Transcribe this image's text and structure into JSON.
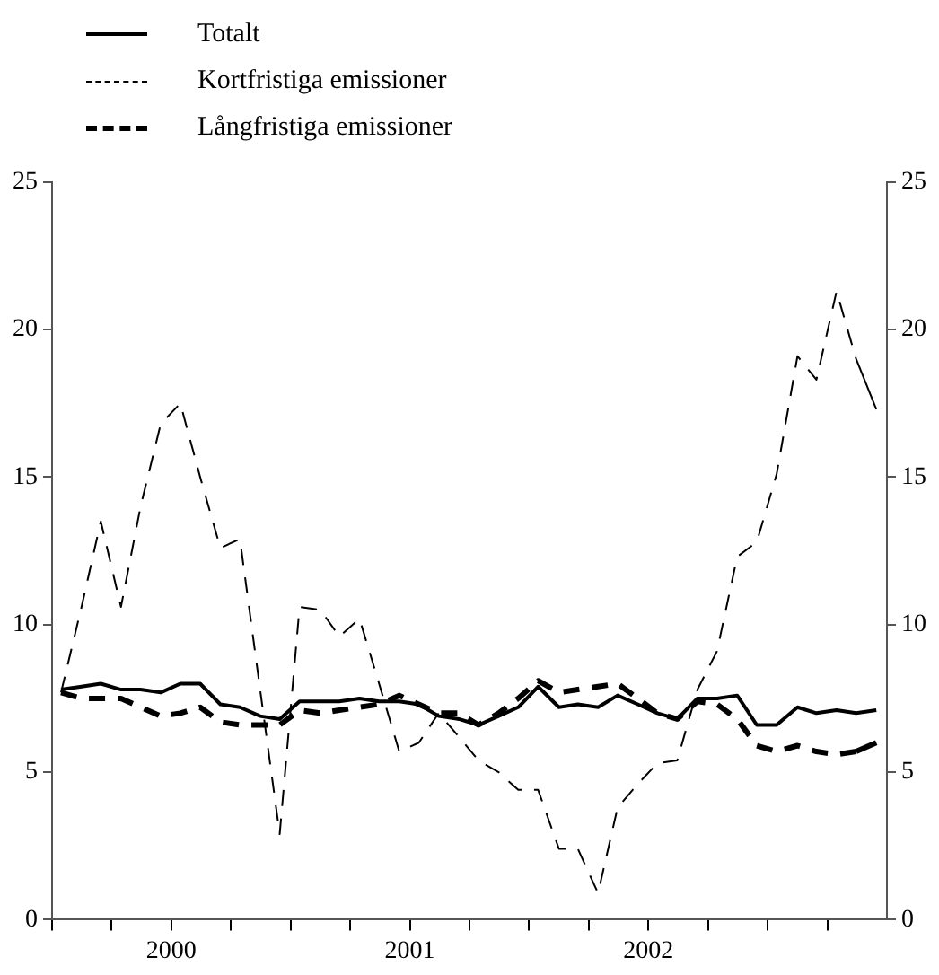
{
  "chart_data": {
    "type": "line",
    "legend": "top left",
    "marker": "none",
    "grid": false,
    "x": [
      "2000-01-15",
      "2000-02-15",
      "2000-03-15",
      "2000-04-15",
      "2000-05-15",
      "2000-06-15",
      "2000-07-15",
      "2000-08-15",
      "2000-09-15",
      "2000-10-15",
      "2000-11-15",
      "2000-12-15",
      "2001-01-15",
      "2001-02-15",
      "2001-03-15",
      "2001-04-15",
      "2001-05-15",
      "2001-06-15",
      "2001-07-15",
      "2001-08-15",
      "2001-09-15",
      "2001-10-15",
      "2001-11-15",
      "2001-12-15",
      "2002-01-15",
      "2002-02-15",
      "2002-03-15",
      "2002-04-15",
      "2002-05-15",
      "2002-06-15",
      "2002-07-15",
      "2002-08-15",
      "2002-09-15",
      "2002-10-15",
      "2002-11-15",
      "2002-12-15",
      "2003-01-15",
      "2003-02-15",
      "2003-03-15",
      "2003-04-15",
      "2003-05-15",
      "2003-06-15"
    ],
    "xlim": [
      "2000-01-01",
      "2003-07-01"
    ],
    "xticks": [
      {
        "value": "2000-01-01",
        "label": null
      },
      {
        "value": "2000-04-01",
        "label": null
      },
      {
        "value": "2000-07-01",
        "label": "2000"
      },
      {
        "value": "2000-10-01",
        "label": null
      },
      {
        "value": "2001-01-01",
        "label": null
      },
      {
        "value": "2001-04-01",
        "label": null
      },
      {
        "value": "2001-07-01",
        "label": "2001"
      },
      {
        "value": "2001-10-01",
        "label": null
      },
      {
        "value": "2002-01-01",
        "label": null
      },
      {
        "value": "2002-04-01",
        "label": null
      },
      {
        "value": "2002-07-01",
        "label": "2002"
      },
      {
        "value": "2002-10-01",
        "label": null
      },
      {
        "value": "2003-01-01",
        "label": null
      },
      {
        "value": "2003-04-01",
        "label": null
      }
    ],
    "ylim": [
      0,
      25
    ],
    "yticks": [
      0,
      5,
      10,
      15,
      20,
      25
    ],
    "y2lim": [
      0,
      25
    ],
    "y2ticks": [
      0,
      5,
      10,
      15,
      20,
      25
    ],
    "series": [
      {
        "name": "Totalt",
        "color": "#000000",
        "line_style": "solid",
        "values": [
          7.8,
          7.9,
          8.0,
          7.8,
          7.8,
          7.7,
          8.0,
          8.0,
          7.3,
          7.2,
          6.9,
          6.8,
          7.4,
          7.4,
          7.4,
          7.5,
          7.4,
          7.4,
          7.3,
          6.9,
          6.8,
          6.6,
          6.9,
          7.2,
          7.9,
          7.2,
          7.3,
          7.2,
          7.6,
          7.3,
          7.0,
          6.8,
          7.5,
          7.5,
          7.6,
          6.6,
          6.6,
          7.2,
          7.0,
          7.1,
          7.0,
          7.1
        ]
      },
      {
        "name": "Kortfristiga emissioner",
        "color": "#000000",
        "line_style": "dashed",
        "values": [
          7.7,
          10.6,
          13.5,
          10.6,
          14.0,
          16.8,
          17.5,
          15.0,
          12.6,
          12.9,
          7.8,
          2.9,
          10.6,
          10.5,
          9.6,
          10.2,
          8.0,
          5.7,
          6.0,
          7.0,
          6.2,
          5.4,
          5.0,
          4.4,
          4.4,
          2.4,
          2.4,
          0.9,
          3.8,
          4.6,
          5.3,
          5.4,
          7.8,
          9.1,
          12.3,
          12.8,
          15.1,
          19.1,
          18.3,
          21.3,
          19.0,
          17.3
        ]
      },
      {
        "name": "Långfristiga emissioner",
        "color": "#000000",
        "line_style": "dashed",
        "values": [
          7.7,
          7.5,
          7.5,
          7.5,
          7.2,
          6.9,
          7.0,
          7.2,
          6.7,
          6.6,
          6.6,
          6.6,
          7.1,
          7.0,
          7.1,
          7.2,
          7.3,
          7.6,
          7.3,
          7.0,
          7.0,
          6.6,
          7.0,
          7.5,
          8.1,
          7.7,
          7.8,
          7.9,
          8.0,
          7.5,
          7.0,
          6.8,
          7.4,
          7.3,
          6.8,
          5.9,
          5.7,
          5.9,
          5.7,
          5.6,
          5.7,
          6.0
        ]
      }
    ]
  }
}
